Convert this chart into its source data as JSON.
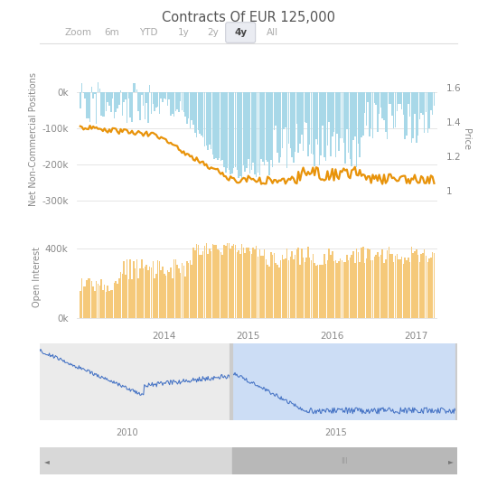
{
  "title": "Contracts Of EUR 125,000",
  "zoom_buttons": [
    "Zoom",
    "6m",
    "YTD",
    "1y",
    "2y",
    "4y",
    "All"
  ],
  "active_zoom": "4y",
  "top_chart": {
    "ylabel_left": "Net Non-Commercial Positions",
    "ylabel_right": "Price",
    "yticks_left": [
      0,
      -100000,
      -200000,
      -300000
    ],
    "ytick_labels_left": [
      "0k",
      "-100k",
      "-200k",
      "-300k"
    ],
    "yticks_right": [
      1.6,
      1.4,
      1.2,
      1.0
    ],
    "ytick_labels_right": [
      "1.6",
      "1.4",
      "1.2",
      "1"
    ],
    "bar_color": "#a8d8e8",
    "line_color": "#e8930a",
    "ylim_left": [
      -350000,
      90000
    ],
    "ylim_right": [
      0.84,
      1.76
    ]
  },
  "middle_chart": {
    "ylabel": "Open Interest",
    "yticks": [
      0,
      400000
    ],
    "ytick_labels": [
      "0k",
      "400k"
    ],
    "bar_color": "#f5c97a",
    "ylim": [
      -30000,
      500000
    ],
    "xtick_labels": [
      "2014",
      "2015",
      "2016",
      "2017"
    ]
  },
  "navigator": {
    "line_color": "#4472c4",
    "unselected_bg": "#ebebeb",
    "selected_bg": "#ccddf5",
    "xtick_labels": [
      "2010",
      "2015"
    ]
  },
  "scrollbar": {
    "bg": "#d8d8d8",
    "thumb": "#b8b8b8",
    "text": "III"
  },
  "bg_color": "#ffffff",
  "grid_color": "#e0e0e0",
  "text_color": "#888888",
  "title_color": "#555555"
}
